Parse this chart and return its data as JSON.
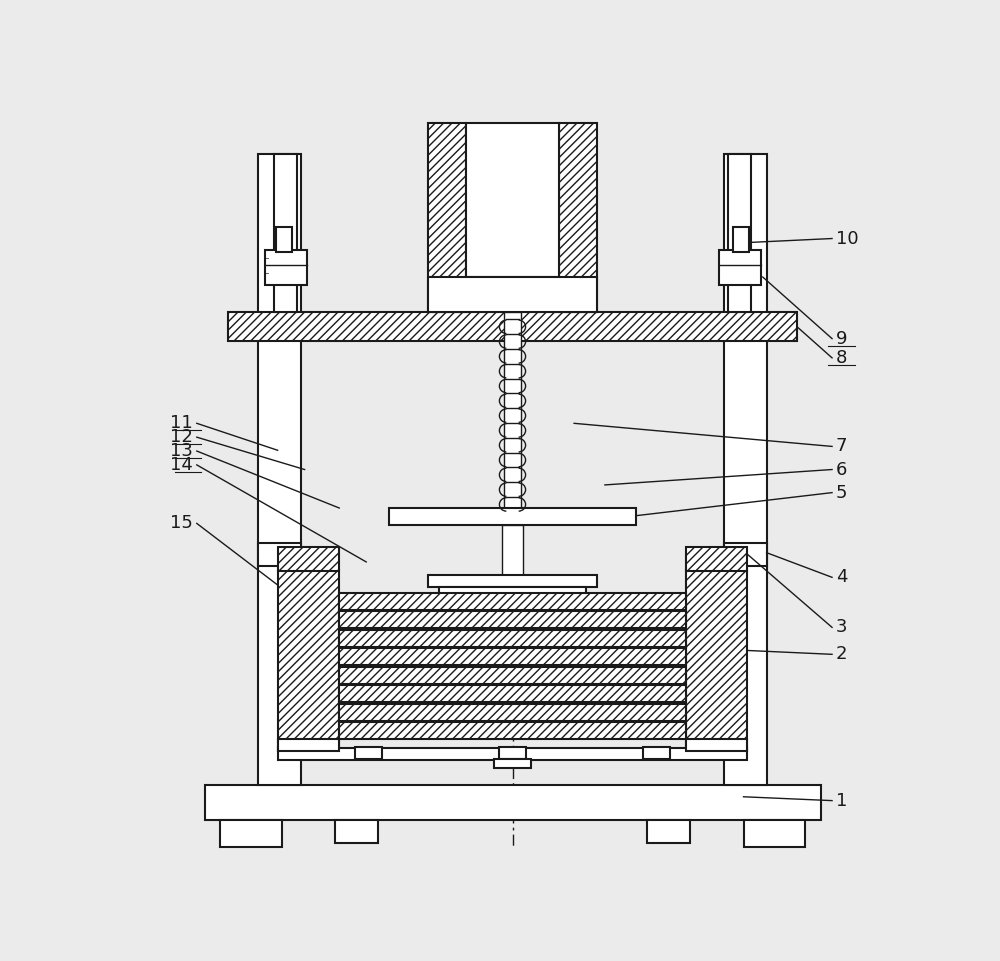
{
  "bg_color": "#f0f0f0",
  "line_color": "#1a1a1a",
  "fig_w": 10.0,
  "fig_h": 9.61,
  "dpi": 100,
  "label_fs": 13
}
